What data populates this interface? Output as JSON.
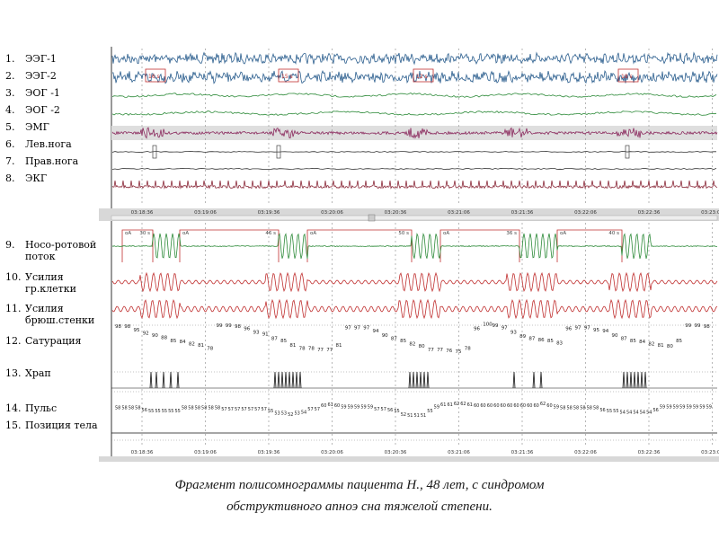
{
  "channels": [
    {
      "num": "1.",
      "label": "ЭЭГ-1"
    },
    {
      "num": "2.",
      "label": "ЭЭГ-2"
    },
    {
      "num": "3.",
      "label": "ЭОГ -1"
    },
    {
      "num": "4.",
      "label": "ЭОГ -2"
    },
    {
      "num": "5.",
      "label": "ЭМГ"
    },
    {
      "num": "6.",
      "label": "Лев.нога"
    },
    {
      "num": "7.",
      "label": "Прав.нога"
    },
    {
      "num": "8.",
      "label": "ЭКГ"
    },
    {
      "num": "9.",
      "label": "Носо-ротовой поток"
    },
    {
      "num": "10.",
      "label": "Усилия гр.клетки"
    },
    {
      "num": "11.",
      "label": "Усилия брюш.стенки"
    },
    {
      "num": "12.",
      "label": "Сатурация"
    },
    {
      "num": "13.",
      "label": "Храп"
    },
    {
      "num": "14.",
      "label": "Пульс"
    },
    {
      "num": "15.",
      "label": "Позиция тела"
    }
  ],
  "times": [
    "03:18:36",
    "03:19:06",
    "03:19:36",
    "03:20:06",
    "03:20:36",
    "03:21:06",
    "03:21:36",
    "03:22:06",
    "03:22:36",
    "03:23:06"
  ],
  "eeg_boxes": [
    "16 s",
    "15 s",
    "12 s",
    "18 s"
  ],
  "apnea_events": [
    {
      "start": "oA",
      "end": "30 s"
    },
    {
      "start": "oA",
      "end": "46 s"
    },
    {
      "start": "oA",
      "end": "50 s"
    },
    {
      "start": "oA",
      "end": "36 s"
    },
    {
      "start": "oA",
      "end": "40 s"
    }
  ],
  "saturation_values": [
    "98",
    "98",
    "95",
    "92",
    "90",
    "88",
    "85",
    "84",
    "82",
    "81",
    "78",
    "99",
    "99",
    "98",
    "96",
    "93",
    "91",
    "87",
    "85",
    "81",
    "78",
    "78",
    "77",
    "77",
    "81",
    "97",
    "97",
    "97",
    "94",
    "90",
    "87",
    "85",
    "82",
    "80",
    "77",
    "77",
    "76",
    "75",
    "78",
    "96",
    "100",
    "99",
    "97",
    "93",
    "89",
    "87",
    "86",
    "85",
    "83",
    "96",
    "97",
    "97",
    "95",
    "94",
    "90",
    "87",
    "85",
    "84",
    "82",
    "81",
    "80",
    "85",
    "99",
    "99",
    "98"
  ],
  "pulse_values": [
    "58",
    "58",
    "58",
    "58",
    "56",
    "55",
    "55",
    "55",
    "55",
    "55",
    "58",
    "58",
    "58",
    "58",
    "58",
    "58",
    "57",
    "57",
    "57",
    "57",
    "57",
    "57",
    "57",
    "55",
    "53",
    "53",
    "52",
    "53",
    "54",
    "57",
    "57",
    "60",
    "61",
    "60",
    "59",
    "59",
    "59",
    "59",
    "59",
    "57",
    "57",
    "56",
    "55",
    "52",
    "51",
    "51",
    "51",
    "55",
    "59",
    "61",
    "61",
    "62",
    "62",
    "61",
    "60",
    "60",
    "60",
    "60",
    "60",
    "60",
    "60",
    "60",
    "60",
    "60",
    "62",
    "60",
    "59",
    "58",
    "58",
    "58",
    "58",
    "58",
    "58",
    "56",
    "55",
    "55",
    "54",
    "54",
    "54",
    "54",
    "54",
    "56",
    "59",
    "59",
    "59",
    "59",
    "59",
    "59",
    "59",
    "59"
  ],
  "caption": {
    "line1": "Фрагмент полисомнограммы пациента Н., 48 лет, с синдромом",
    "line2": "обструктивного апноэ сна тяжелой степени."
  }
}
